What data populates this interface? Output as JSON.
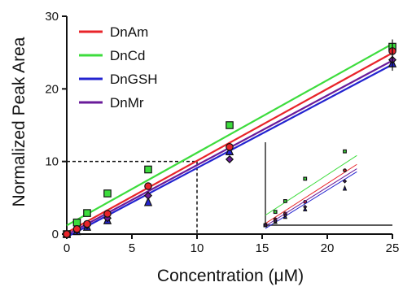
{
  "chart_data": {
    "type": "scatter",
    "title": "",
    "xlabel": "Concentration (μM)",
    "ylabel": "Normalized Peak Area",
    "xlim": [
      0,
      25
    ],
    "ylim": [
      0,
      30
    ],
    "x_ticks": [
      "0",
      "5",
      "10",
      "15",
      "20",
      "25"
    ],
    "y_ticks": [
      "0",
      "10",
      "20",
      "30"
    ],
    "legend_position": "top-left",
    "grid": false,
    "reference_point": {
      "x": 10,
      "y": 10
    },
    "series": [
      {
        "name": "DnAm",
        "color": "#e8242a",
        "marker": "circle",
        "x": [
          0,
          0.78,
          1.56,
          3.125,
          6.25,
          12.5,
          25
        ],
        "y": [
          0,
          0.7,
          1.4,
          2.8,
          6.6,
          12.0,
          25.2
        ],
        "fit": {
          "slope": 0.99,
          "intercept": 0.2
        }
      },
      {
        "name": "DnCd",
        "color": "#3ddc3d",
        "marker": "square",
        "x": [
          0,
          0.78,
          1.56,
          3.125,
          6.25,
          12.5,
          25
        ],
        "y": [
          0,
          1.6,
          2.9,
          5.6,
          8.9,
          15.0,
          25.8
        ],
        "fit": {
          "slope": 1.0,
          "intercept": 1.2
        }
      },
      {
        "name": "DnGSH",
        "color": "#2323d0",
        "marker": "triangle",
        "x": [
          0,
          0.78,
          1.56,
          3.125,
          6.25,
          12.5,
          25
        ],
        "y": [
          0,
          0.4,
          1.0,
          1.9,
          4.4,
          11.4,
          23.5
        ],
        "fit": {
          "slope": 0.95,
          "intercept": -0.4
        }
      },
      {
        "name": "DnMr",
        "color": "#6a1b9a",
        "marker": "diamond",
        "x": [
          0,
          0.78,
          1.56,
          3.125,
          6.25,
          12.5,
          25
        ],
        "y": [
          0,
          0.5,
          1.2,
          2.2,
          5.3,
          10.3,
          24.0
        ],
        "fit": {
          "slope": 0.96,
          "intercept": -0.1
        }
      }
    ],
    "inset": {
      "description_visible": false,
      "x_range": [
        0,
        10
      ],
      "y_range": [
        0,
        10
      ],
      "points": {
        "DnAm": [
          [
            0,
            0
          ],
          [
            0.78,
            0.7
          ],
          [
            1.56,
            1.4
          ],
          [
            3.125,
            2.8
          ],
          [
            6.25,
            6.6
          ]
        ],
        "DnCd": [
          [
            0,
            0
          ],
          [
            0.78,
            1.6
          ],
          [
            1.56,
            2.9
          ],
          [
            3.125,
            5.6
          ],
          [
            6.25,
            8.9
          ]
        ],
        "DnGSH": [
          [
            0,
            0
          ],
          [
            0.78,
            0.4
          ],
          [
            1.56,
            1.0
          ],
          [
            3.125,
            1.9
          ],
          [
            6.25,
            4.4
          ]
        ],
        "DnMr": [
          [
            0,
            0
          ],
          [
            0.78,
            0.5
          ],
          [
            1.56,
            1.2
          ],
          [
            3.125,
            2.2
          ],
          [
            6.25,
            5.3
          ]
        ]
      }
    }
  }
}
